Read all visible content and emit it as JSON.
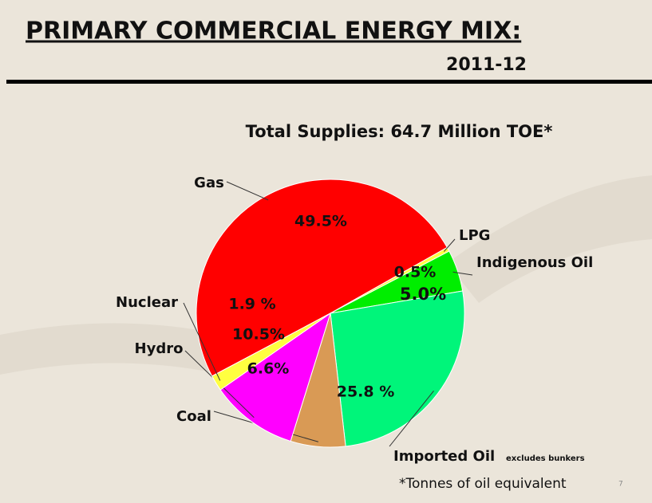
{
  "chart_data": {
    "type": "pie",
    "title": "PRIMARY COMMERCIAL ENERGY MIX:",
    "subtitle": "2011-12",
    "total_label": "Total Supplies: 64.7 Million TOE*",
    "categories": [
      "Gas",
      "LPG",
      "Indigenous Oil",
      "Imported Oil",
      "Coal",
      "Hydro",
      "Nuclear"
    ],
    "values": [
      49.5,
      0.5,
      5.0,
      25.8,
      6.6,
      10.5,
      1.9
    ],
    "value_labels": [
      "49.5%",
      "0.5%",
      "5.0%",
      "25.8 %",
      "6.6%",
      "10.5%",
      "1.9 %"
    ],
    "colors": [
      "#ff0000",
      "#ffff40",
      "#00ee00",
      "#00f57a",
      "#d99a55",
      "#ff00ff",
      "#ffff40"
    ],
    "category_note": "excludes bunkers",
    "footnote": "*Tonnes of oil equivalent",
    "page_number": "7"
  }
}
